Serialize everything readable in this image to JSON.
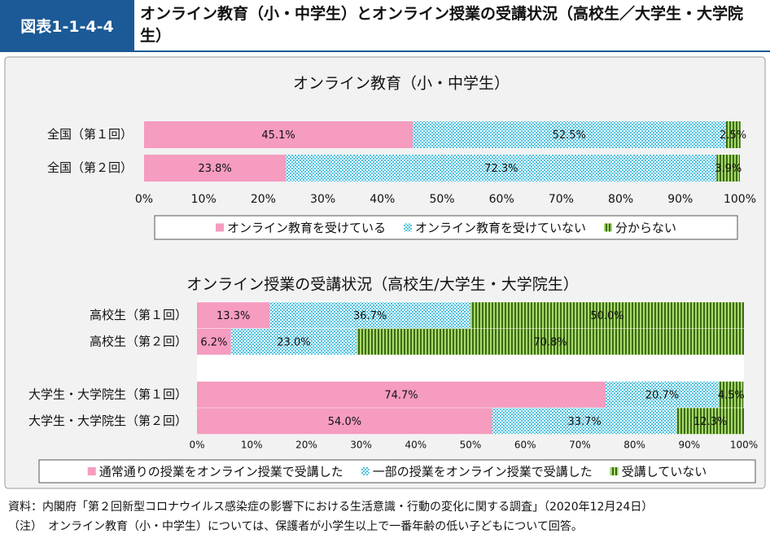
{
  "header": {
    "label": "図表1-1-4-4",
    "title": "オンライン教育（小・中学生）とオンライン授業の受講状況（高校生／大学生・大学院生）"
  },
  "chart_data": [
    {
      "type": "bar",
      "orientation": "horizontal",
      "stacked": true,
      "title": "オンライン教育（小・中学生）",
      "categories": [
        "全国（第１回）",
        "全国（第２回）"
      ],
      "series": [
        {
          "name": "オンライン教育を受けている",
          "color": "#f59cc0",
          "pattern": "solid",
          "values": [
            45.1,
            23.8
          ],
          "value_labels": [
            "45.1%",
            "23.8%"
          ]
        },
        {
          "name": "オンライン教育を受けていない",
          "color": "#4fc3e0",
          "pattern": "dots",
          "values": [
            52.5,
            72.3
          ],
          "value_labels": [
            "52.5%",
            "72.3%"
          ]
        },
        {
          "name": "分からない",
          "color": "#3d6b16",
          "pattern": "stripes",
          "values": [
            2.5,
            3.9
          ],
          "value_labels": [
            "2.5%",
            "3.9%"
          ]
        }
      ],
      "xlim": [
        0,
        100
      ],
      "xticks": [
        {
          "value": 0,
          "label": "0%"
        },
        {
          "value": 10,
          "label": "10%"
        },
        {
          "value": 20,
          "label": "20%"
        },
        {
          "value": 30,
          "label": "30%"
        },
        {
          "value": 40,
          "label": "40%"
        },
        {
          "value": 50,
          "label": "50%"
        },
        {
          "value": 60,
          "label": "60%"
        },
        {
          "value": 70,
          "label": "70%"
        },
        {
          "value": 80,
          "label": "80%"
        },
        {
          "value": 90,
          "label": "90%"
        },
        {
          "value": 100,
          "label": "100%"
        }
      ],
      "grid": false,
      "legend": "bottom"
    },
    {
      "type": "bar",
      "orientation": "horizontal",
      "stacked": true,
      "title": "オンライン授業の受講状況（高校生/大学生・大学院生）",
      "categories": [
        "高校生（第１回）",
        "高校生（第２回）",
        null,
        "大学生・大学院生（第１回）",
        "大学生・大学院生（第２回）"
      ],
      "series": [
        {
          "name": "通常通りの授業をオンライン授業で受講した",
          "color": "#f59cc0",
          "pattern": "solid",
          "values": [
            13.3,
            6.2,
            null,
            74.7,
            54
          ],
          "value_labels": [
            "13.3%",
            "6.2%",
            null,
            "74.7%",
            "54.0%"
          ]
        },
        {
          "name": "一部の授業をオンライン授業で受講した",
          "color": "#4fc3e0",
          "pattern": "dots",
          "values": [
            36.7,
            23,
            null,
            20.7,
            33.7
          ],
          "value_labels": [
            "36.7%",
            "23.0%",
            null,
            "20.7%",
            "33.7%"
          ]
        },
        {
          "name": "受講していない",
          "color": "#3d6b16",
          "pattern": "stripes",
          "values": [
            50,
            70.8,
            null,
            4.5,
            12.3
          ],
          "value_labels": [
            "50.0%",
            "70.8%",
            null,
            "4.5%",
            "12.3%"
          ]
        }
      ],
      "xlim": [
        0,
        100
      ],
      "xticks": [
        {
          "value": 0,
          "label": "0%"
        },
        {
          "value": 10,
          "label": "10%"
        },
        {
          "value": 20,
          "label": "20%"
        },
        {
          "value": 30,
          "label": "30%"
        },
        {
          "value": 40,
          "label": "40%"
        },
        {
          "value": 50,
          "label": "50%"
        },
        {
          "value": 60,
          "label": "60%"
        },
        {
          "value": 70,
          "label": "70%"
        },
        {
          "value": 80,
          "label": "80%"
        },
        {
          "value": 90,
          "label": "90%"
        },
        {
          "value": 100,
          "label": "100%"
        }
      ],
      "grid": false,
      "legend": "bottom"
    }
  ],
  "notes": [
    "資料：内閣府「第２回新型コロナウイルス感染症の影響下における生活意識・行動の変化に関する調査」（2020年12月24日）",
    "（注）　オンライン教育（小・中学生）については、保護者が小学生以上で一番年齢の低い子どもについて回答。"
  ]
}
